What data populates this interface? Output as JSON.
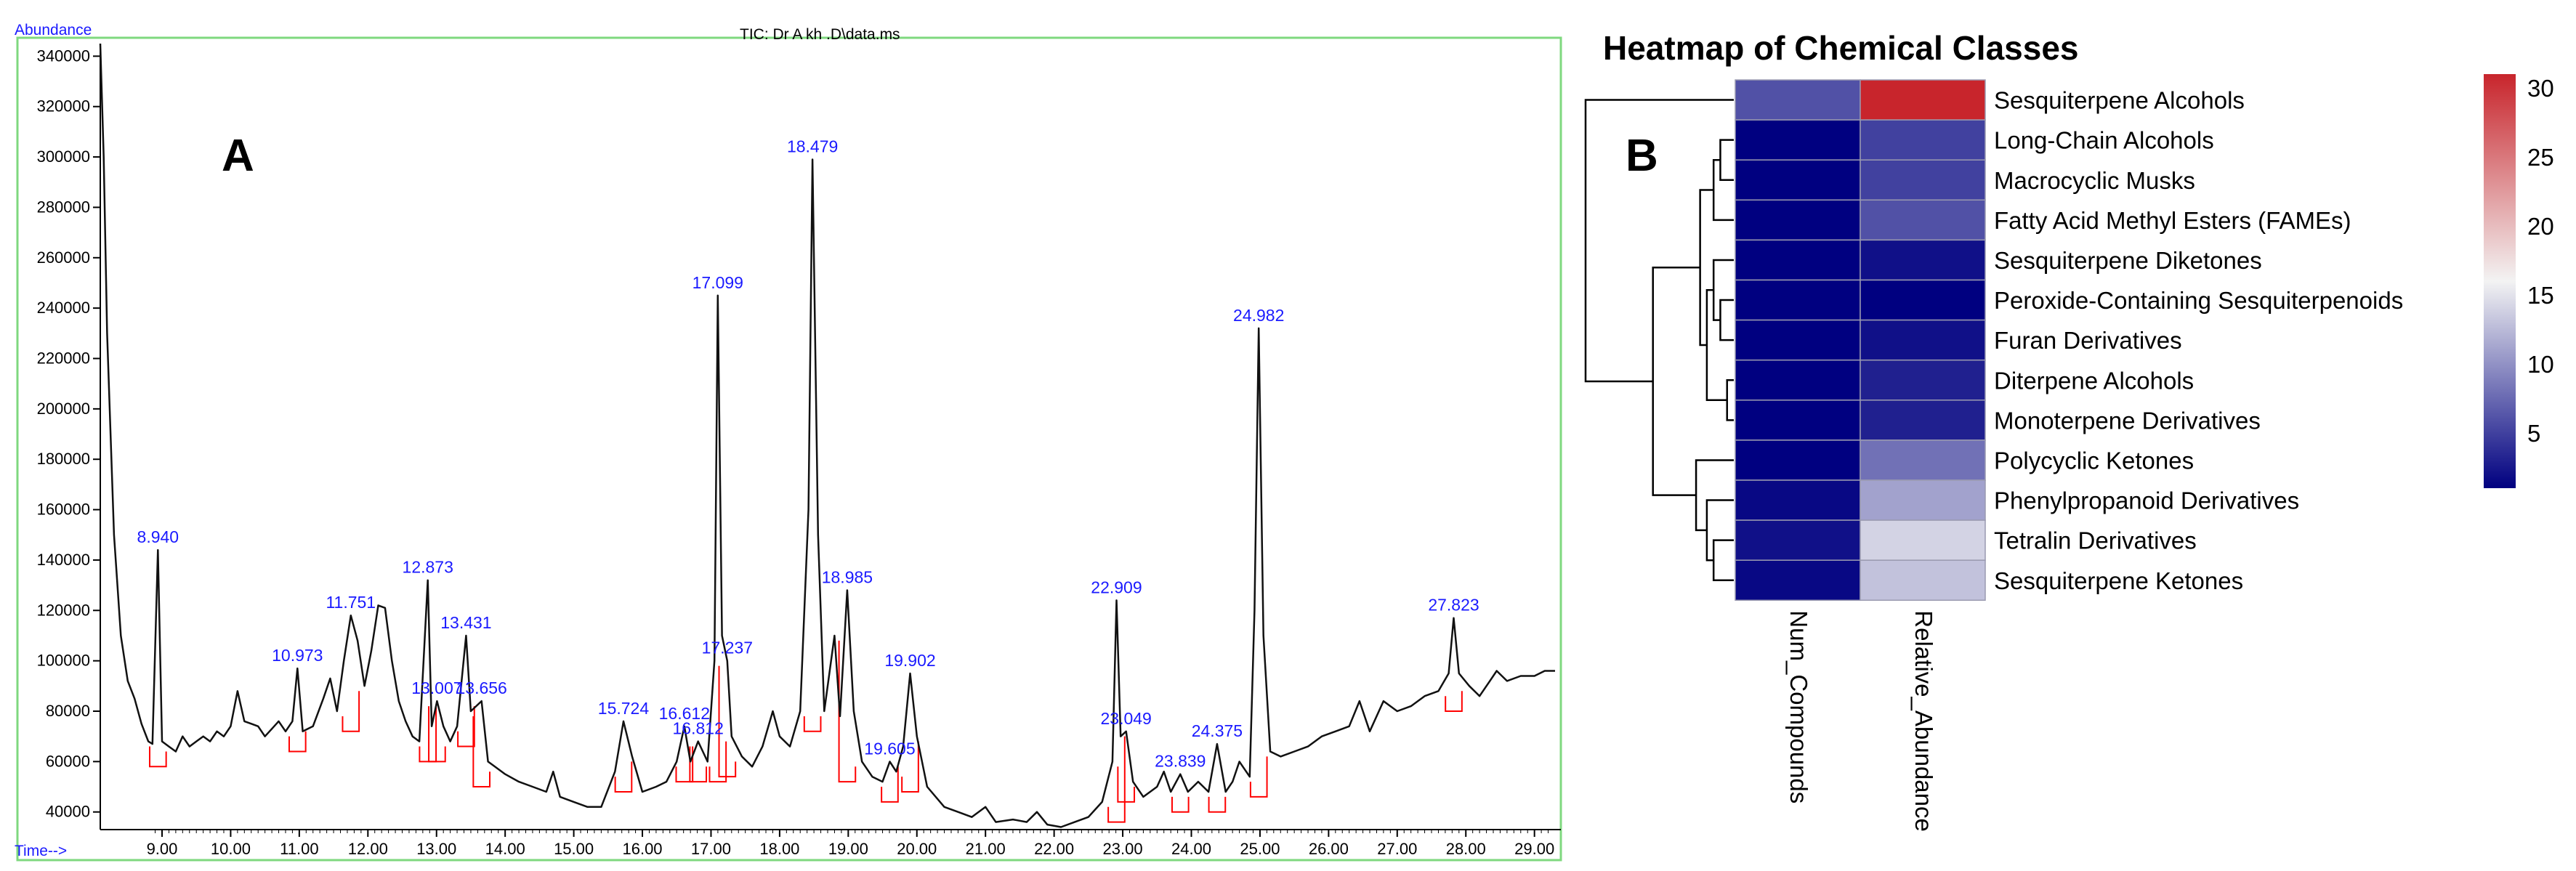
{
  "chart_data": [
    {
      "type": "line",
      "panel_label": "A",
      "title": "TIC: Dr A kh  .D\\data.ms",
      "ylabel": "Abundance",
      "xlabel": "Time-->",
      "xlim": [
        8.1,
        29.3
      ],
      "ylim": [
        33000,
        345000
      ],
      "x_ticks": [
        "9.00",
        "10.00",
        "11.00",
        "12.00",
        "13.00",
        "14.00",
        "15.00",
        "16.00",
        "17.00",
        "18.00",
        "19.00",
        "20.00",
        "21.00",
        "22.00",
        "23.00",
        "24.00",
        "25.00",
        "26.00",
        "27.00",
        "28.00",
        "29.00"
      ],
      "y_ticks": [
        "40000",
        "60000",
        "80000",
        "100000",
        "120000",
        "140000",
        "160000",
        "180000",
        "200000",
        "220000",
        "240000",
        "260000",
        "280000",
        "300000",
        "320000",
        "340000"
      ],
      "colors": {
        "trace": "#111111",
        "labels": "#1a1aff",
        "baseline": "#ff0000",
        "frame": "#7fd87f"
      },
      "peak_labels": [
        {
          "rt": 8.94,
          "label": "8.940",
          "abundance": 144000
        },
        {
          "rt": 10.973,
          "label": "10.973",
          "abundance": 97000
        },
        {
          "rt": 11.751,
          "label": "11.751",
          "abundance": 118000
        },
        {
          "rt": 12.873,
          "label": "12.873",
          "abundance": 132000
        },
        {
          "rt": 13.007,
          "label": "13.007",
          "abundance": 84000
        },
        {
          "rt": 13.431,
          "label": "13.431",
          "abundance": 110000
        },
        {
          "rt": 13.656,
          "label": "13.656",
          "abundance": 84000
        },
        {
          "rt": 15.724,
          "label": "15.724",
          "abundance": 76000
        },
        {
          "rt": 16.612,
          "label": "16.612",
          "abundance": 74000
        },
        {
          "rt": 16.812,
          "label": "16.812",
          "abundance": 68000
        },
        {
          "rt": 17.099,
          "label": "17.099",
          "abundance": 245000
        },
        {
          "rt": 17.237,
          "label": "17.237",
          "abundance": 100000
        },
        {
          "rt": 18.479,
          "label": "18.479",
          "abundance": 299000
        },
        {
          "rt": 18.985,
          "label": "18.985",
          "abundance": 128000
        },
        {
          "rt": 19.605,
          "label": "19.605",
          "abundance": 60000
        },
        {
          "rt": 19.902,
          "label": "19.902",
          "abundance": 95000
        },
        {
          "rt": 22.909,
          "label": "22.909",
          "abundance": 124000
        },
        {
          "rt": 23.049,
          "label": "23.049",
          "abundance": 72000
        },
        {
          "rt": 23.839,
          "label": "23.839",
          "abundance": 55000
        },
        {
          "rt": 24.375,
          "label": "24.375",
          "abundance": 67000
        },
        {
          "rt": 24.982,
          "label": "24.982",
          "abundance": 232000
        },
        {
          "rt": 27.823,
          "label": "27.823",
          "abundance": 117000
        }
      ],
      "trace": [
        [
          8.1,
          345000
        ],
        [
          8.15,
          300000
        ],
        [
          8.2,
          230000
        ],
        [
          8.3,
          150000
        ],
        [
          8.4,
          110000
        ],
        [
          8.5,
          92000
        ],
        [
          8.6,
          85000
        ],
        [
          8.7,
          75000
        ],
        [
          8.8,
          68000
        ],
        [
          8.86,
          67000
        ],
        [
          8.94,
          144000
        ],
        [
          9.0,
          68000
        ],
        [
          9.1,
          66000
        ],
        [
          9.2,
          64000
        ],
        [
          9.3,
          70000
        ],
        [
          9.4,
          66000
        ],
        [
          9.5,
          68000
        ],
        [
          9.6,
          70000
        ],
        [
          9.7,
          68000
        ],
        [
          9.8,
          72000
        ],
        [
          9.9,
          70000
        ],
        [
          10.0,
          74000
        ],
        [
          10.1,
          88000
        ],
        [
          10.2,
          76000
        ],
        [
          10.3,
          75000
        ],
        [
          10.4,
          74000
        ],
        [
          10.5,
          70000
        ],
        [
          10.6,
          73000
        ],
        [
          10.7,
          76000
        ],
        [
          10.8,
          72000
        ],
        [
          10.9,
          76000
        ],
        [
          10.973,
          97000
        ],
        [
          11.05,
          72000
        ],
        [
          11.2,
          74000
        ],
        [
          11.35,
          85000
        ],
        [
          11.45,
          93000
        ],
        [
          11.55,
          80000
        ],
        [
          11.65,
          100000
        ],
        [
          11.751,
          118000
        ],
        [
          11.85,
          108000
        ],
        [
          11.95,
          90000
        ],
        [
          12.05,
          104000
        ],
        [
          12.15,
          122000
        ],
        [
          12.25,
          121000
        ],
        [
          12.35,
          100000
        ],
        [
          12.45,
          84000
        ],
        [
          12.55,
          76000
        ],
        [
          12.65,
          70000
        ],
        [
          12.75,
          68000
        ],
        [
          12.873,
          132000
        ],
        [
          12.93,
          74000
        ],
        [
          13.007,
          84000
        ],
        [
          13.1,
          74000
        ],
        [
          13.2,
          68000
        ],
        [
          13.3,
          74000
        ],
        [
          13.431,
          110000
        ],
        [
          13.5,
          80000
        ],
        [
          13.656,
          84000
        ],
        [
          13.75,
          60000
        ],
        [
          13.85,
          58000
        ],
        [
          14.0,
          55000
        ],
        [
          14.2,
          52000
        ],
        [
          14.4,
          50000
        ],
        [
          14.6,
          48000
        ],
        [
          14.7,
          56000
        ],
        [
          14.8,
          46000
        ],
        [
          15.0,
          44000
        ],
        [
          15.2,
          42000
        ],
        [
          15.4,
          42000
        ],
        [
          15.6,
          56000
        ],
        [
          15.724,
          76000
        ],
        [
          15.85,
          62000
        ],
        [
          16.0,
          48000
        ],
        [
          16.2,
          50000
        ],
        [
          16.35,
          52000
        ],
        [
          16.5,
          60000
        ],
        [
          16.612,
          74000
        ],
        [
          16.7,
          60000
        ],
        [
          16.812,
          68000
        ],
        [
          16.95,
          60000
        ],
        [
          17.05,
          100000
        ],
        [
          17.099,
          245000
        ],
        [
          17.16,
          110000
        ],
        [
          17.237,
          100000
        ],
        [
          17.3,
          70000
        ],
        [
          17.45,
          62000
        ],
        [
          17.6,
          58000
        ],
        [
          17.75,
          66000
        ],
        [
          17.9,
          80000
        ],
        [
          18.0,
          70000
        ],
        [
          18.15,
          66000
        ],
        [
          18.3,
          80000
        ],
        [
          18.42,
          160000
        ],
        [
          18.479,
          299000
        ],
        [
          18.56,
          150000
        ],
        [
          18.65,
          80000
        ],
        [
          18.8,
          110000
        ],
        [
          18.88,
          78000
        ],
        [
          18.985,
          128000
        ],
        [
          19.08,
          80000
        ],
        [
          19.2,
          60000
        ],
        [
          19.35,
          54000
        ],
        [
          19.5,
          52000
        ],
        [
          19.605,
          60000
        ],
        [
          19.7,
          56000
        ],
        [
          19.8,
          66000
        ],
        [
          19.902,
          95000
        ],
        [
          20.0,
          70000
        ],
        [
          20.15,
          50000
        ],
        [
          20.4,
          42000
        ],
        [
          20.6,
          40000
        ],
        [
          20.8,
          38000
        ],
        [
          21.0,
          42000
        ],
        [
          21.15,
          36000
        ],
        [
          21.4,
          37000
        ],
        [
          21.6,
          36000
        ],
        [
          21.75,
          40000
        ],
        [
          21.9,
          35000
        ],
        [
          22.1,
          34000
        ],
        [
          22.3,
          36000
        ],
        [
          22.5,
          38000
        ],
        [
          22.7,
          44000
        ],
        [
          22.85,
          60000
        ],
        [
          22.909,
          124000
        ],
        [
          22.97,
          70000
        ],
        [
          23.049,
          72000
        ],
        [
          23.15,
          52000
        ],
        [
          23.3,
          46000
        ],
        [
          23.5,
          50000
        ],
        [
          23.6,
          56000
        ],
        [
          23.7,
          48000
        ],
        [
          23.839,
          55000
        ],
        [
          23.95,
          48000
        ],
        [
          24.1,
          52000
        ],
        [
          24.25,
          48000
        ],
        [
          24.375,
          67000
        ],
        [
          24.5,
          48000
        ],
        [
          24.6,
          52000
        ],
        [
          24.7,
          60000
        ],
        [
          24.85,
          54000
        ],
        [
          24.92,
          120000
        ],
        [
          24.982,
          232000
        ],
        [
          25.05,
          110000
        ],
        [
          25.15,
          64000
        ],
        [
          25.3,
          62000
        ],
        [
          25.5,
          64000
        ],
        [
          25.7,
          66000
        ],
        [
          25.9,
          70000
        ],
        [
          26.1,
          72000
        ],
        [
          26.3,
          74000
        ],
        [
          26.45,
          84000
        ],
        [
          26.6,
          72000
        ],
        [
          26.8,
          84000
        ],
        [
          27.0,
          80000
        ],
        [
          27.2,
          82000
        ],
        [
          27.4,
          86000
        ],
        [
          27.6,
          88000
        ],
        [
          27.75,
          95000
        ],
        [
          27.823,
          117000
        ],
        [
          27.9,
          95000
        ],
        [
          28.05,
          90000
        ],
        [
          28.2,
          86000
        ],
        [
          28.35,
          92000
        ],
        [
          28.45,
          96000
        ],
        [
          28.6,
          92000
        ],
        [
          28.8,
          94000
        ],
        [
          29.0,
          94000
        ],
        [
          29.15,
          96000
        ],
        [
          29.3,
          96000
        ]
      ]
    },
    {
      "type": "heatmap",
      "panel_label": "B",
      "title": "Heatmap of Chemical Classes",
      "columns": [
        "Num_Compounds",
        "Relative_Abundance"
      ],
      "rows": [
        {
          "name": "Sesquiterpene Alcohols",
          "values": [
            6,
            31
          ]
        },
        {
          "name": "Long-Chain Alcohols",
          "values": [
            1,
            5
          ]
        },
        {
          "name": "Macrocyclic Musks",
          "values": [
            1,
            5
          ]
        },
        {
          "name": "Fatty Acid Methyl Esters (FAMEs)",
          "values": [
            1,
            6
          ]
        },
        {
          "name": "Sesquiterpene Diketones",
          "values": [
            1,
            2
          ]
        },
        {
          "name": "Peroxide-Containing Sesquiterpenoids",
          "values": [
            1,
            1
          ]
        },
        {
          "name": "Furan Derivatives",
          "values": [
            1,
            2
          ]
        },
        {
          "name": "Diterpene Alcohols",
          "values": [
            1,
            3
          ]
        },
        {
          "name": "Monoterpene Derivatives",
          "values": [
            1,
            3
          ]
        },
        {
          "name": "Polycyclic Ketones",
          "values": [
            1,
            8
          ]
        },
        {
          "name": "Phenylpropanoid Derivatives",
          "values": [
            1.5,
            11
          ]
        },
        {
          "name": "Tetralin Derivatives",
          "values": [
            2,
            14
          ]
        },
        {
          "name": "Sesquiterpene Ketones",
          "values": [
            1.5,
            13
          ]
        }
      ],
      "colorbar": {
        "ticks": [
          "5",
          "10",
          "15",
          "20",
          "25",
          "30"
        ],
        "range": [
          1,
          31
        ],
        "low_color": "#000080",
        "mid_color": "#f3f3f3",
        "high_color": "#c8252c",
        "mid_value": 16
      },
      "dendrogram": {
        "merges": [
          [
            7,
            8,
            0.5
          ],
          [
            5,
            6,
            1
          ],
          [
            14,
            4,
            1.5
          ],
          [
            15,
            13,
            2
          ],
          [
            1,
            2,
            1
          ],
          [
            17,
            3,
            1.5
          ],
          [
            18,
            16,
            2.5
          ],
          [
            11,
            12,
            1.5
          ],
          [
            20,
            10,
            2
          ],
          [
            21,
            9,
            2.8
          ],
          [
            19,
            22,
            6
          ],
          [
            0,
            23,
            11
          ]
        ],
        "max_height": 11
      }
    }
  ]
}
